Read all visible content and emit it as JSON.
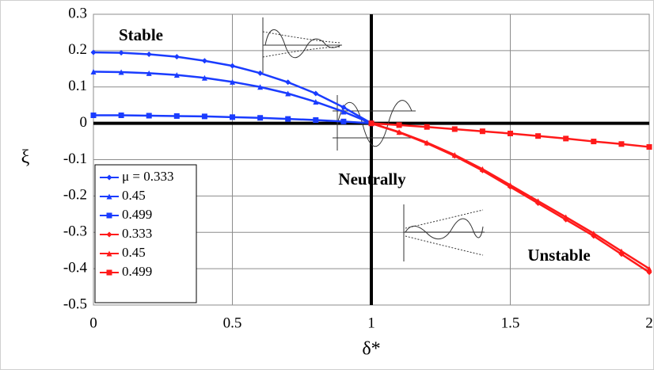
{
  "chart_data": {
    "type": "line",
    "x_label": "δ*",
    "y_label": "ξ",
    "x": [
      0,
      0.1,
      0.2,
      0.3,
      0.4,
      0.5,
      0.6,
      0.7,
      0.8,
      0.9,
      1,
      1.1,
      1.2,
      1.3,
      1.4,
      1.5,
      1.6,
      1.7,
      1.8,
      1.9,
      2
    ],
    "series": [
      {
        "name": "μ = 0.333",
        "color": "#1a3cff",
        "marker": "diamond",
        "values": [
          0.195,
          0.194,
          0.19,
          0.183,
          0.172,
          0.158,
          0.138,
          0.113,
          0.082,
          0.044,
          0,
          null,
          null,
          null,
          null,
          null,
          null,
          null,
          null,
          null,
          null
        ]
      },
      {
        "name": "0.45",
        "color": "#1a3cff",
        "marker": "triangle",
        "values": [
          0.142,
          0.141,
          0.138,
          0.133,
          0.125,
          0.114,
          0.1,
          0.082,
          0.059,
          0.032,
          0,
          null,
          null,
          null,
          null,
          null,
          null,
          null,
          null,
          null,
          null
        ]
      },
      {
        "name": "0.499",
        "color": "#1a3cff",
        "marker": "square",
        "values": [
          0.022,
          0.022,
          0.021,
          0.02,
          0.019,
          0.017,
          0.015,
          0.012,
          0.009,
          0.005,
          0,
          null,
          null,
          null,
          null,
          null,
          null,
          null,
          null,
          null,
          null
        ]
      },
      {
        "name": "0.333",
        "color": "#ff1a1a",
        "marker": "diamond",
        "values": [
          null,
          null,
          null,
          null,
          null,
          null,
          null,
          null,
          null,
          null,
          0,
          -0.025,
          -0.055,
          -0.09,
          -0.13,
          -0.175,
          -0.22,
          -0.265,
          -0.31,
          -0.36,
          -0.41
        ]
      },
      {
        "name": "0.45",
        "color": "#ff1a1a",
        "marker": "triangle",
        "values": [
          null,
          null,
          null,
          null,
          null,
          null,
          null,
          null,
          null,
          null,
          0,
          -0.024,
          -0.053,
          -0.087,
          -0.126,
          -0.17,
          -0.214,
          -0.258,
          -0.303,
          -0.352,
          -0.4
        ]
      },
      {
        "name": "0.499",
        "color": "#ff1a1a",
        "marker": "square",
        "values": [
          null,
          null,
          null,
          null,
          null,
          null,
          null,
          null,
          null,
          null,
          0,
          -0.005,
          -0.01,
          -0.016,
          -0.022,
          -0.028,
          -0.035,
          -0.042,
          -0.05,
          -0.057,
          -0.065
        ]
      }
    ],
    "annotations": [
      "Stable",
      "Neutrally",
      "Unstable"
    ],
    "xlim": [
      0,
      2
    ],
    "ylim": [
      -0.5,
      0.3
    ],
    "xticks": [
      0,
      0.5,
      1,
      1.5,
      2
    ],
    "yticks": [
      0.3,
      0.2,
      0.1,
      0,
      -0.1,
      -0.2,
      -0.3,
      -0.4,
      -0.5
    ],
    "grid": true,
    "legend": "lower left"
  }
}
